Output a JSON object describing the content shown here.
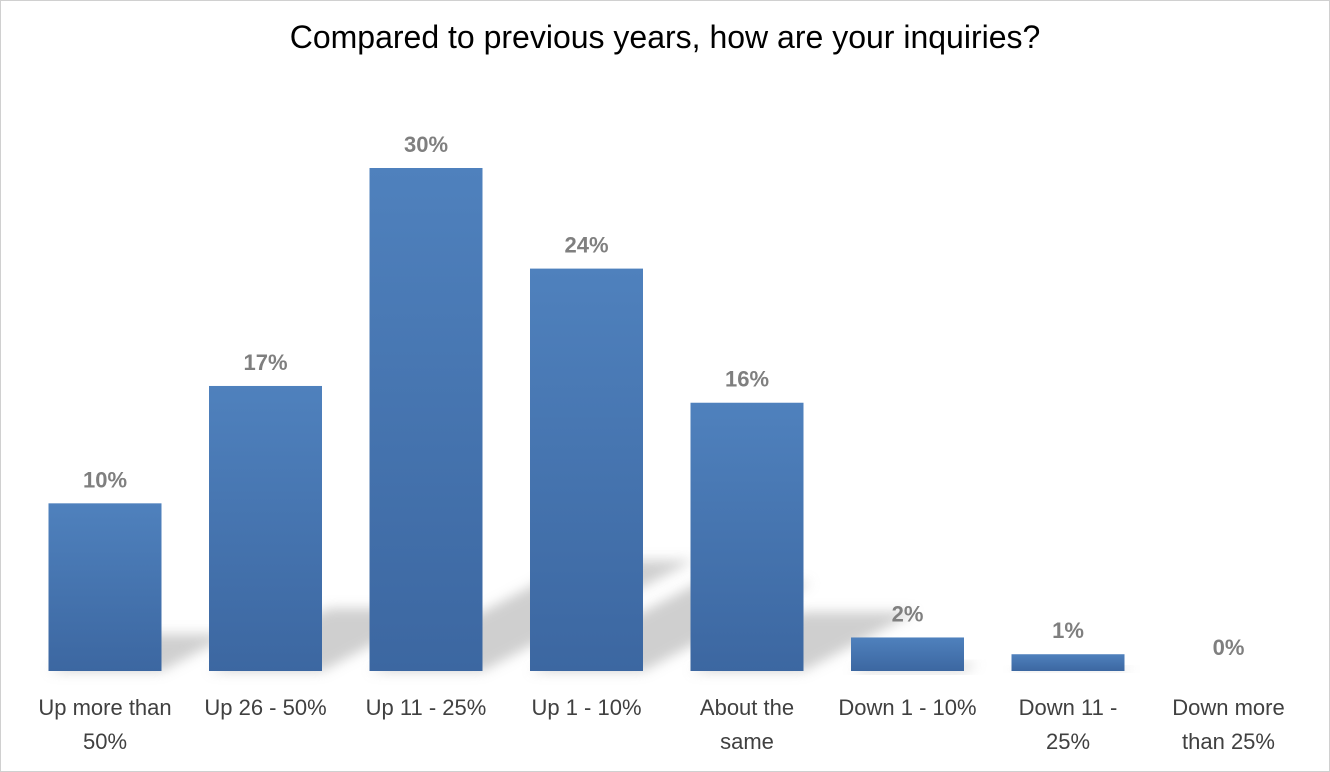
{
  "chart_data": {
    "type": "bar",
    "title": "Compared to previous years, how are your inquiries?",
    "categories": [
      [
        "Up more than",
        "50%"
      ],
      [
        "Up 26 - 50%"
      ],
      [
        "Up 11 - 25%"
      ],
      [
        "Up 1 - 10%"
      ],
      [
        "About the",
        "same"
      ],
      [
        "Down 1 - 10%"
      ],
      [
        "Down 11 -",
        "25%"
      ],
      [
        "Down more",
        "than 25%"
      ]
    ],
    "values": [
      10,
      17,
      30,
      24,
      16,
      2,
      1,
      0
    ],
    "value_labels": [
      "10%",
      "17%",
      "30%",
      "24%",
      "16%",
      "2%",
      "1%",
      "0%"
    ],
    "ylim": [
      0,
      30
    ],
    "xlabel": "",
    "ylabel": "",
    "grid": false,
    "legend": "none",
    "colors": {
      "bar_top": "#4f81bd",
      "bar_bottom": "#3c67a1",
      "value_label": "#7f7f7f",
      "category_label": "#404040",
      "shadow": "#bfbfbf"
    }
  }
}
